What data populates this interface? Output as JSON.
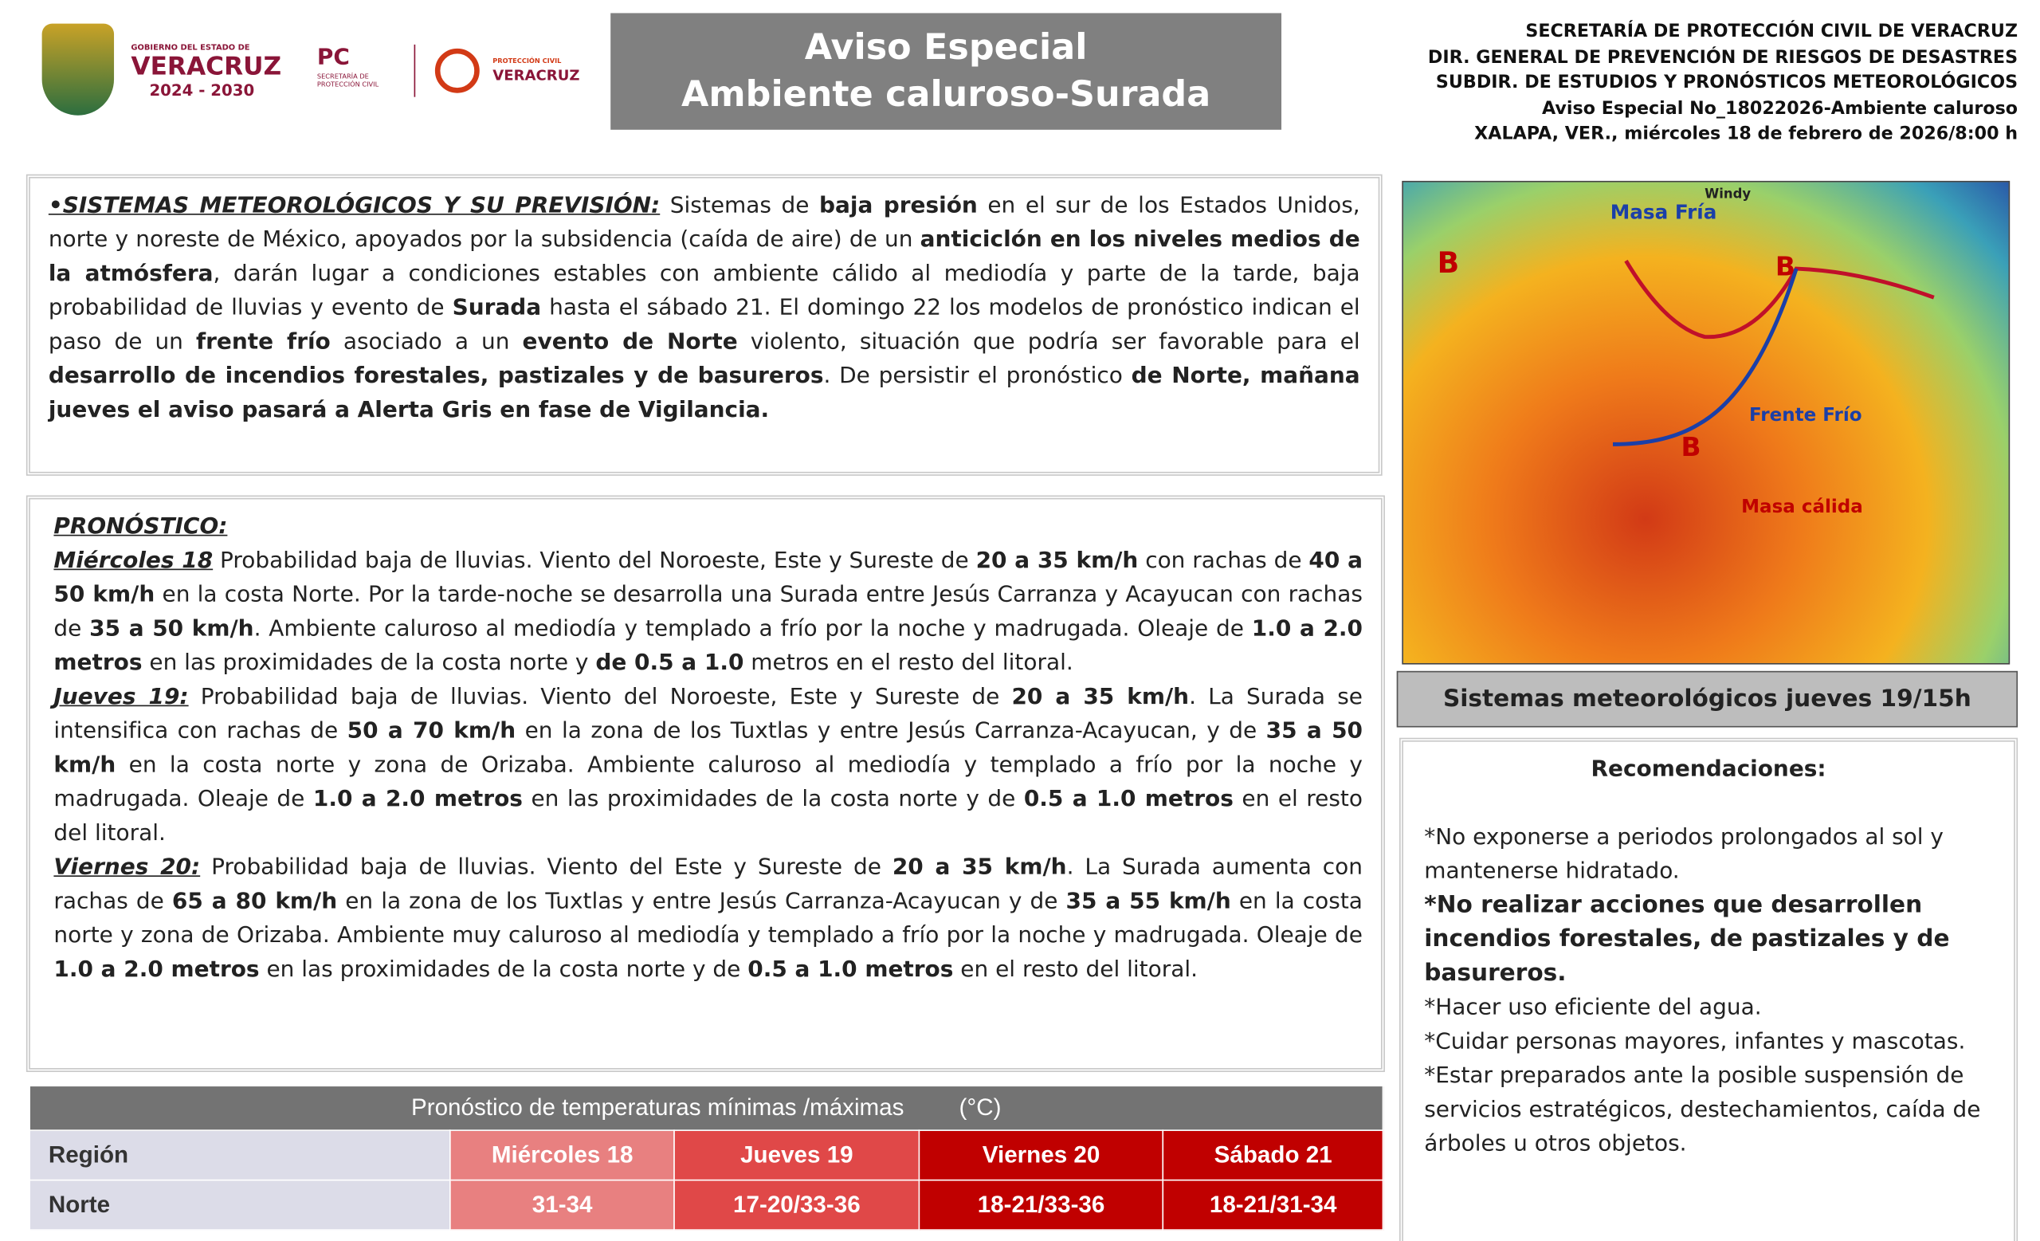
{
  "header": {
    "logos": [
      "GOBIERNO DEL ESTADO DE",
      "VERACRUZ",
      "2024 - 2030",
      "PC",
      "SECRETARÍA DE PROTECCIÓN CIVIL",
      "PROTECCIÓN CIVIL",
      "VERACRUZ"
    ],
    "title": [
      "Aviso Especial",
      "Ambiente caluroso-Surada"
    ],
    "agency": [
      "SECRETARÍA DE PROTECCIÓN CIVIL DE VERACRUZ",
      "DIR. GENERAL DE PREVENCIÓN DE RIESGOS DE DESASTRES",
      "SUBDIR. DE ESTUDIOS Y PRONÓSTICOS METEOROLÓGICOS",
      "Aviso Especial No_18022026-Ambiente caluroso",
      "XALAPA, VER., miércoles 18 de febrero de 2026/8:00 h"
    ]
  },
  "systems": {
    "heading": "•SISTEMAS METEOROLÓGICOS Y SU PREVISIÓN:",
    "runs": [
      {
        "text": " Sistemas de ",
        "bold": false
      },
      {
        "text": "baja presión",
        "bold": true
      },
      {
        "text": " en el sur de los Estados Unidos, norte y noreste de México, apoyados por la subsidencia (caída de aire) de un ",
        "bold": false
      },
      {
        "text": "anticiclón en los niveles medios de la atmósfera",
        "bold": true
      },
      {
        "text": ", darán lugar a condiciones estables con ambiente cálido al mediodía y parte de la tarde, baja probabilidad de lluvias y evento de ",
        "bold": false
      },
      {
        "text": "Surada",
        "bold": true
      },
      {
        "text": " hasta el sábado 21. El domingo 22 los modelos de pronóstico indican el paso de un ",
        "bold": false
      },
      {
        "text": "frente frío",
        "bold": true
      },
      {
        "text": " asociado a un ",
        "bold": false
      },
      {
        "text": "evento de Norte",
        "bold": true
      },
      {
        "text": " violento, situación que podría ser favorable para el ",
        "bold": false
      },
      {
        "text": "desarrollo de incendios forestales, pastizales y de basureros",
        "bold": true
      },
      {
        "text": ". De persistir el pronóstico ",
        "bold": false
      },
      {
        "text": "de Norte, mañana jueves el aviso pasará a Alerta Gris en fase de Vigilancia.",
        "bold": true
      }
    ]
  },
  "forecast": {
    "heading": "PRONÓSTICO:",
    "days": [
      {
        "day": "Miércoles 18",
        "runs": [
          {
            "text": " Probabilidad baja de lluvias. Viento del Noroeste, Este y Sureste de ",
            "bold": false
          },
          {
            "text": "20 a 35 km/h",
            "bold": true
          },
          {
            "text": " con rachas de ",
            "bold": false
          },
          {
            "text": "40 a 50 km/h",
            "bold": true
          },
          {
            "text": " en la costa Norte. Por la tarde-noche se desarrolla una Surada entre Jesús Carranza y Acayucan con rachas de ",
            "bold": false
          },
          {
            "text": "35 a 50 km/h",
            "bold": true
          },
          {
            "text": ". Ambiente caluroso al mediodía y templado a frío por la noche y madrugada. Oleaje de ",
            "bold": false
          },
          {
            "text": "1.0 a 2.0 metros",
            "bold": true
          },
          {
            "text": " en las proximidades de la costa norte y ",
            "bold": false
          },
          {
            "text": "de 0.5 a 1.0",
            "bold": true
          },
          {
            "text": " metros en el resto del litoral.",
            "bold": false
          }
        ]
      },
      {
        "day": "Jueves 19:",
        "runs": [
          {
            "text": " Probabilidad baja de lluvias. Viento del Noroeste, Este y Sureste de ",
            "bold": false
          },
          {
            "text": "20 a 35 km/h",
            "bold": true
          },
          {
            "text": ". La Surada se intensifica con rachas de ",
            "bold": false
          },
          {
            "text": "50 a 70 km/h",
            "bold": true
          },
          {
            "text": " en la zona de los Tuxtlas y entre Jesús Carranza-Acayucan, y de ",
            "bold": false
          },
          {
            "text": "35 a 50 km/h",
            "bold": true
          },
          {
            "text": " en la costa norte y zona de Orizaba. Ambiente caluroso al mediodía y templado a frío por la noche y madrugada. Oleaje de ",
            "bold": false
          },
          {
            "text": "1.0 a 2.0 metros",
            "bold": true
          },
          {
            "text": " en las proximidades de la costa norte y de ",
            "bold": false
          },
          {
            "text": "0.5 a 1.0 metros",
            "bold": true
          },
          {
            "text": " en el resto del litoral.",
            "bold": false
          }
        ]
      },
      {
        "day": "Viernes 20:",
        "runs": [
          {
            "text": " Probabilidad baja de lluvias. Viento del Este y Sureste de ",
            "bold": false
          },
          {
            "text": "20 a 35 km/h",
            "bold": true
          },
          {
            "text": ". La Surada aumenta con rachas de ",
            "bold": false
          },
          {
            "text": "65 a 80 km/h",
            "bold": true
          },
          {
            "text": " en la zona de los Tuxtlas y entre Jesús Carranza-Acayucan y de ",
            "bold": false
          },
          {
            "text": "35 a 55 km/h",
            "bold": true
          },
          {
            "text": " en la costa norte y zona de Orizaba. Ambiente muy caluroso al mediodía y templado a frío por la noche y madrugada. Oleaje de ",
            "bold": false
          },
          {
            "text": "1.0 a 2.0 metros",
            "bold": true
          },
          {
            "text": " en las proximidades de la costa norte y de ",
            "bold": false
          },
          {
            "text": "0.5 a 1.0 metros",
            "bold": true
          },
          {
            "text": " en el resto del litoral.",
            "bold": false
          }
        ]
      }
    ]
  },
  "table": {
    "title": "Pronóstico de temperaturas mínimas /máximas",
    "unit": "(°C)",
    "header": [
      "Región",
      "Miércoles 18",
      "Jueves 19",
      "Viernes 20",
      "Sábado 21"
    ],
    "rows": [
      [
        "Norte",
        "31-34",
        "17-20/33-36",
        "18-21/33-36",
        "18-21/31-34"
      ]
    ]
  },
  "map": {
    "labels": [
      "Windy",
      "Masa Fría",
      "B",
      "B",
      "B",
      "Frente Frío",
      "Masa cálida"
    ],
    "caption": "Sistemas meteorológicos jueves 19/15h"
  },
  "recommendations": {
    "title": "Recomendaciones:",
    "items": [
      {
        "text": "*No exponerse a periodos prolongados al sol y mantenerse hidratado.",
        "bold": false
      },
      {
        "text": "*No realizar acciones que desarrollen incendios forestales, de pastizales y de basureros.",
        "bold": true
      },
      {
        "text": "*Hacer uso eficiente del agua.",
        "bold": false
      },
      {
        "text": "*Cuidar personas mayores, infantes y mascotas.",
        "bold": false
      },
      {
        "text": "*Estar preparados ante la posible suspensión de servicios estratégicos, destechamientos, caída de árboles u otros objetos.",
        "bold": false
      }
    ]
  }
}
